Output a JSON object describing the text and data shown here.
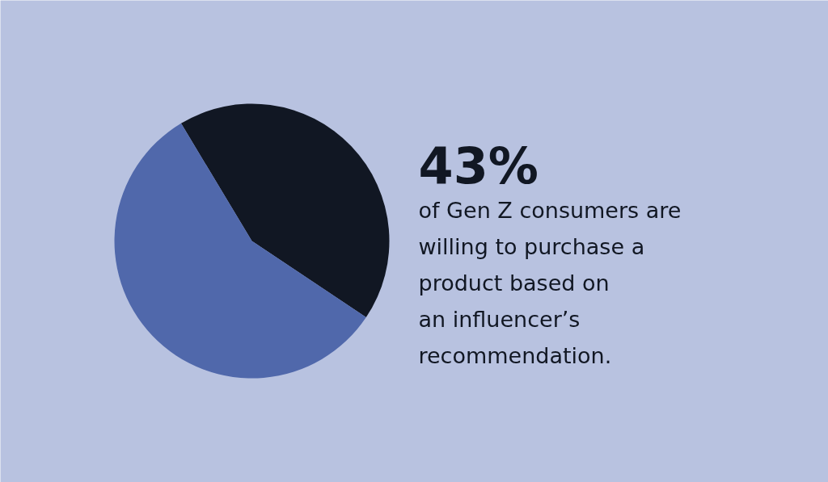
{
  "chart_data": {
    "type": "pie",
    "title": "43%",
    "categories": [
      null,
      null
    ],
    "values": [
      43,
      57
    ],
    "colors": [
      "#111723",
      "#5068ab"
    ],
    "annotations": [
      "of Gen Z consumers are",
      "willing to purchase a",
      "product based on",
      "an influencer’s",
      "recommendation."
    ]
  }
}
